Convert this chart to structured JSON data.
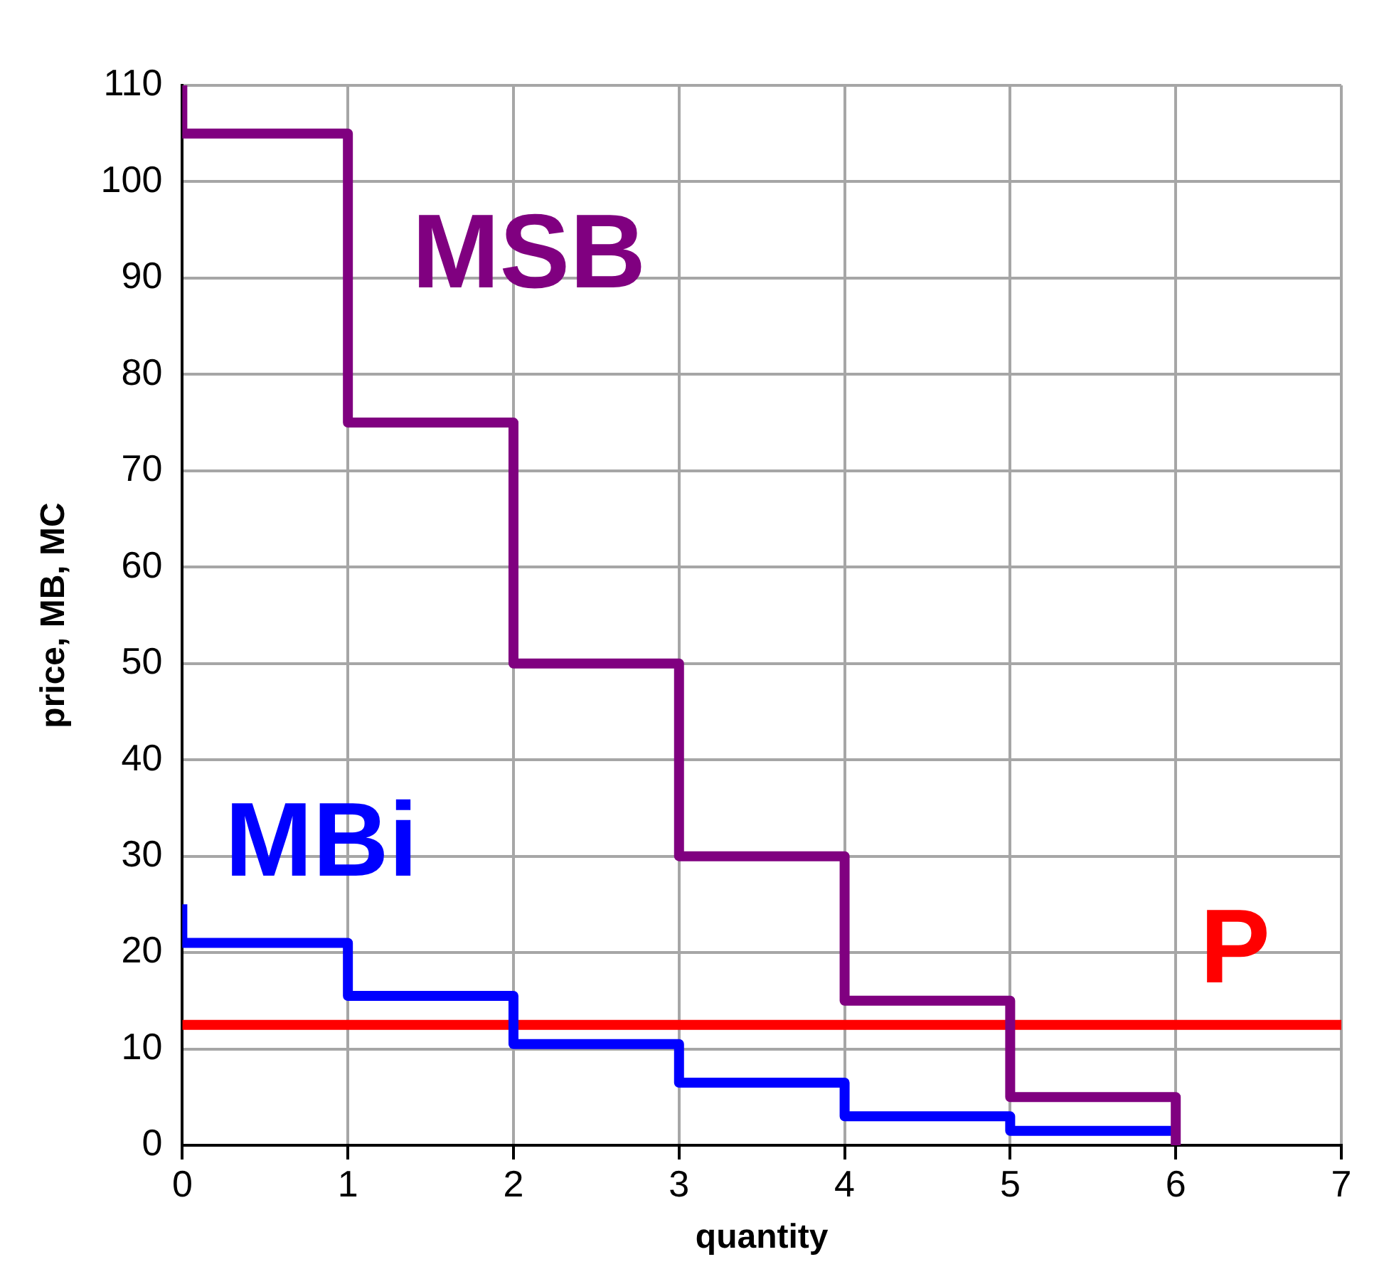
{
  "chart_data": {
    "type": "step",
    "xlabel": "quantity",
    "ylabel": "price, MB, MC",
    "series": [
      {
        "name": "MSB",
        "color": "#800080",
        "x": [
          0,
          0,
          1,
          2,
          3,
          4,
          5,
          6
        ],
        "values": [
          110,
          105,
          75,
          50,
          30,
          15,
          5,
          0
        ]
      },
      {
        "name": "MBi",
        "color": "#0000ff",
        "x": [
          0,
          0,
          1,
          2,
          3,
          4,
          5,
          6
        ],
        "values": [
          25,
          21,
          15.5,
          10.5,
          6.5,
          3,
          1.5,
          1.5
        ]
      }
    ],
    "ref_lines": [
      {
        "axis": "y",
        "value": 12.5,
        "label": "P",
        "color": "#ff0000"
      }
    ],
    "xlim": [
      0,
      7
    ],
    "xticks": [
      0,
      1,
      2,
      3,
      4,
      5,
      6,
      7
    ],
    "ylim": [
      0,
      110
    ],
    "yticks": [
      0,
      10,
      20,
      30,
      40,
      50,
      60,
      70,
      80,
      90,
      100,
      110
    ],
    "grid": true,
    "legend": false
  }
}
